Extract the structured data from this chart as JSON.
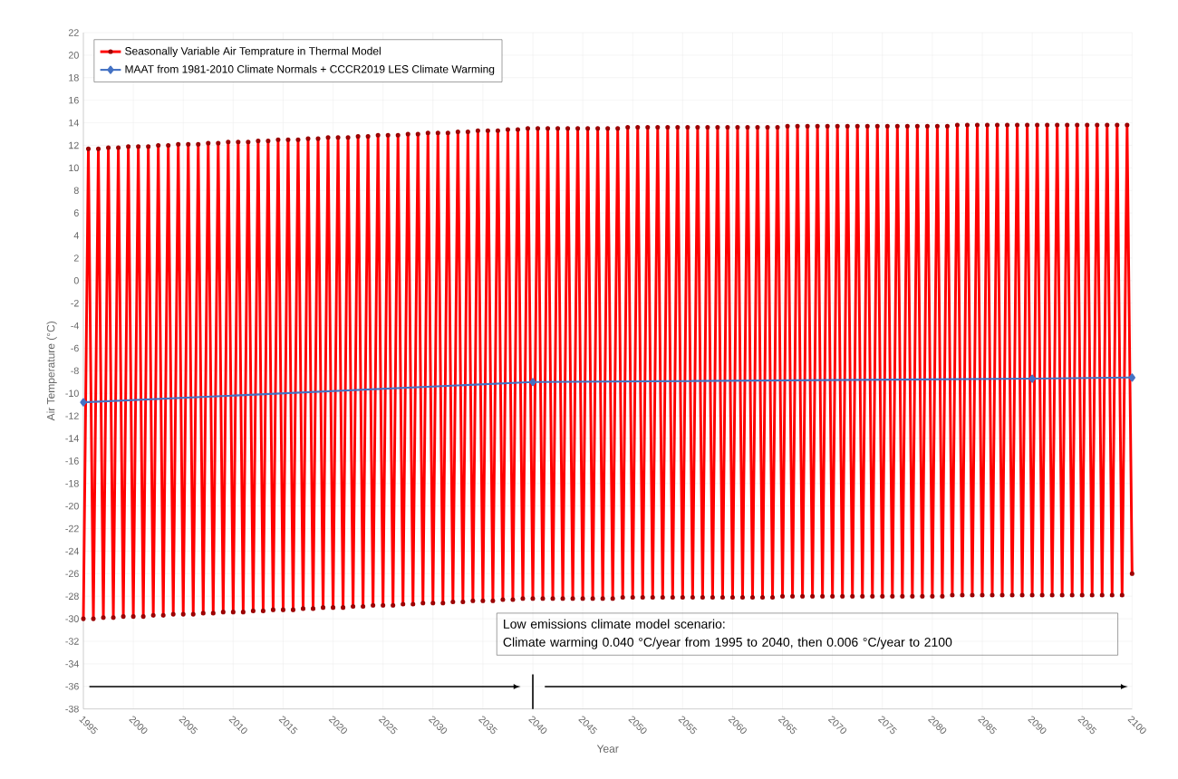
{
  "chart_data": {
    "type": "line",
    "xlabel": "Year",
    "ylabel": "Air Temperature (°C)",
    "xlim": [
      1995,
      2100
    ],
    "xticks": [
      1995,
      2000,
      2005,
      2010,
      2015,
      2020,
      2025,
      2030,
      2035,
      2040,
      2045,
      2050,
      2055,
      2060,
      2065,
      2070,
      2075,
      2080,
      2085,
      2090,
      2095,
      2100
    ],
    "ylim": [
      -38,
      22
    ],
    "yticks": [
      -38,
      -36,
      -34,
      -32,
      -30,
      -28,
      -26,
      -24,
      -22,
      -20,
      -18,
      -16,
      -14,
      -12,
      -10,
      -8,
      -6,
      -4,
      -2,
      0,
      2,
      4,
      6,
      8,
      10,
      12,
      14,
      16,
      18,
      20,
      22
    ],
    "grid": true,
    "legend": "top left",
    "annotations": [
      "Low emissions climate model scenario:",
      "Climate warming 0.040 °C/year from 1995 to 2040, then 0.006 °C/year to 2100"
    ],
    "series": [
      {
        "name": "Seasonally Variable Air Temprature in Thermal Model",
        "color": "#ff0000",
        "marker": "circle",
        "x": [
          1995,
          1995.5,
          1996,
          1996.5,
          1997,
          1997.5,
          1998,
          1998.5,
          1999,
          1999.5,
          2000,
          2000.5,
          2001,
          2001.5,
          2002,
          2002.5,
          2003,
          2003.5,
          2004,
          2004.5,
          2005,
          2005.5,
          2006,
          2006.5,
          2007,
          2007.5,
          2008,
          2008.5,
          2009,
          2009.5,
          2010,
          2010.5,
          2011,
          2011.5,
          2012,
          2012.5,
          2013,
          2013.5,
          2014,
          2014.5,
          2015,
          2015.5,
          2016,
          2016.5,
          2017,
          2017.5,
          2018,
          2018.5,
          2019,
          2019.5,
          2020,
          2020.5,
          2021,
          2021.5,
          2022,
          2022.5,
          2023,
          2023.5,
          2024,
          2024.5,
          2025,
          2025.5,
          2026,
          2026.5,
          2027,
          2027.5,
          2028,
          2028.5,
          2029,
          2029.5,
          2030,
          2030.5,
          2031,
          2031.5,
          2032,
          2032.5,
          2033,
          2033.5,
          2034,
          2034.5,
          2035,
          2035.5,
          2036,
          2036.5,
          2037,
          2037.5,
          2038,
          2038.5,
          2039,
          2039.5,
          2040,
          2040.5,
          2041,
          2041.5,
          2042,
          2042.5,
          2043,
          2043.5,
          2044,
          2044.5,
          2045,
          2045.5,
          2046,
          2046.5,
          2047,
          2047.5,
          2048,
          2048.5,
          2049,
          2049.5,
          2050,
          2050.5,
          2051,
          2051.5,
          2052,
          2052.5,
          2053,
          2053.5,
          2054,
          2054.5,
          2055,
          2055.5,
          2056,
          2056.5,
          2057,
          2057.5,
          2058,
          2058.5,
          2059,
          2059.5,
          2060,
          2060.5,
          2061,
          2061.5,
          2062,
          2062.5,
          2063,
          2063.5,
          2064,
          2064.5,
          2065,
          2065.5,
          2066,
          2066.5,
          2067,
          2067.5,
          2068,
          2068.5,
          2069,
          2069.5,
          2070,
          2070.5,
          2071,
          2071.5,
          2072,
          2072.5,
          2073,
          2073.5,
          2074,
          2074.5,
          2075,
          2075.5,
          2076,
          2076.5,
          2077,
          2077.5,
          2078,
          2078.5,
          2079,
          2079.5,
          2080,
          2080.5,
          2081,
          2081.5,
          2082,
          2082.5,
          2083,
          2083.5,
          2084,
          2084.5,
          2085,
          2085.5,
          2086,
          2086.5,
          2087,
          2087.5,
          2088,
          2088.5,
          2089,
          2089.5,
          2090,
          2090.5,
          2091,
          2091.5,
          2092,
          2092.5,
          2093,
          2093.5,
          2094,
          2094.5,
          2095,
          2095.5,
          2096,
          2096.5,
          2097,
          2097.5,
          2098,
          2098.5,
          2099,
          2099.5,
          2100
        ],
        "values": [
          -30,
          11.7,
          -30,
          11.7,
          -29.9,
          11.8,
          -29.9,
          11.8,
          -29.8,
          11.9,
          -29.8,
          11.9,
          -29.8,
          11.9,
          -29.7,
          12,
          -29.7,
          12,
          -29.6,
          12.1,
          -29.6,
          12.1,
          -29.6,
          12.1,
          -29.5,
          12.2,
          -29.5,
          12.2,
          -29.4,
          12.3,
          -29.4,
          12.3,
          -29.4,
          12.3,
          -29.3,
          12.4,
          -29.3,
          12.4,
          -29.2,
          12.5,
          -29.2,
          12.5,
          -29.2,
          12.5,
          -29.1,
          12.6,
          -29.1,
          12.6,
          -29,
          12.7,
          -29,
          12.7,
          -29,
          12.7,
          -28.9,
          12.8,
          -28.9,
          12.8,
          -28.8,
          12.9,
          -28.8,
          12.9,
          -28.8,
          12.9,
          -28.7,
          13,
          -28.7,
          13,
          -28.6,
          13.1,
          -28.6,
          13.1,
          -28.6,
          13.1,
          -28.5,
          13.2,
          -28.5,
          13.2,
          -28.4,
          13.3,
          -28.4,
          13.3,
          -28.4,
          13.3,
          -28.3,
          13.4,
          -28.3,
          13.4,
          -28.2,
          13.5,
          -28.2,
          13.5,
          -28.2,
          13.5,
          -28.2,
          13.5,
          -28.2,
          13.5,
          -28.2,
          13.5,
          -28.2,
          13.5,
          -28.2,
          13.5,
          -28.2,
          13.5,
          -28.2,
          13.5,
          -28.1,
          13.6,
          -28.1,
          13.6,
          -28.1,
          13.6,
          -28.1,
          13.6,
          -28.1,
          13.6,
          -28.1,
          13.6,
          -28.1,
          13.6,
          -28.1,
          13.6,
          -28.1,
          13.6,
          -28.1,
          13.6,
          -28.1,
          13.6,
          -28.1,
          13.6,
          -28.1,
          13.6,
          -28.1,
          13.6,
          -28.1,
          13.6,
          -28.1,
          13.6,
          -28,
          13.7,
          -28,
          13.7,
          -28,
          13.7,
          -28,
          13.7,
          -28,
          13.7,
          -28,
          13.7,
          -28,
          13.7,
          -28,
          13.7,
          -28,
          13.7,
          -28,
          13.7,
          -28,
          13.7,
          -28,
          13.7,
          -28,
          13.7,
          -28,
          13.7,
          -28,
          13.7,
          -28,
          13.7,
          -28,
          13.7,
          -27.9,
          13.8,
          -27.9,
          13.8,
          -27.9,
          13.8,
          -27.9,
          13.8,
          -27.9,
          13.8,
          -27.9,
          13.8,
          -27.9,
          13.8,
          -27.9,
          13.8,
          -27.9,
          13.8,
          -27.9,
          13.8,
          -27.9,
          13.8,
          -27.9,
          13.8,
          -27.9,
          13.8,
          -27.9,
          13.8,
          -27.9,
          13.8,
          -27.9,
          13.8,
          -27.9,
          13.8,
          -27.9,
          13.8,
          -26
        ]
      },
      {
        "name": "MAAT from 1981-2010 Climate Normals + CCCR2019 LES Climate Warming",
        "color": "#4472c4",
        "marker": "diamond",
        "x": [
          1995,
          2040,
          2090,
          2100
        ],
        "values": [
          -10.8,
          -9,
          -8.7,
          -8.6
        ]
      }
    ]
  }
}
